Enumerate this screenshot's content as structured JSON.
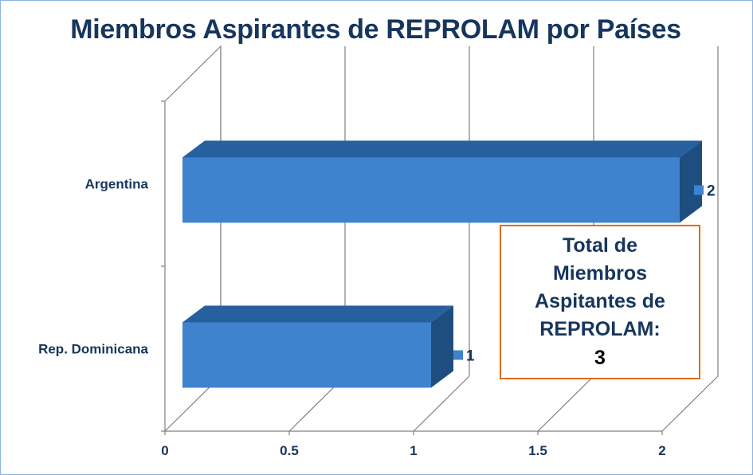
{
  "chart_data": {
    "type": "bar",
    "orientation": "horizontal",
    "style": "3d",
    "title": "Miembros Aspirantes de REPROLAM por Países",
    "categories": [
      "Argentina",
      "Rep. Dominicana"
    ],
    "values": [
      2,
      1
    ],
    "data_labels": [
      "2",
      "1"
    ],
    "xticks": [
      "0",
      "0.5",
      "1",
      "1.5",
      "2"
    ],
    "xlim": [
      0,
      2
    ],
    "grid": true,
    "legend": "none",
    "colors": {
      "bar_front": "#3f83cf",
      "bar_top": "#27609e",
      "bar_side": "#1e4e7f",
      "grid": "#808080",
      "text": "#17365d"
    }
  },
  "annotation": {
    "text": "Total de Miembros Aspitantes de REPROLAM:",
    "value": "3",
    "border_color": "#e46c0a"
  }
}
